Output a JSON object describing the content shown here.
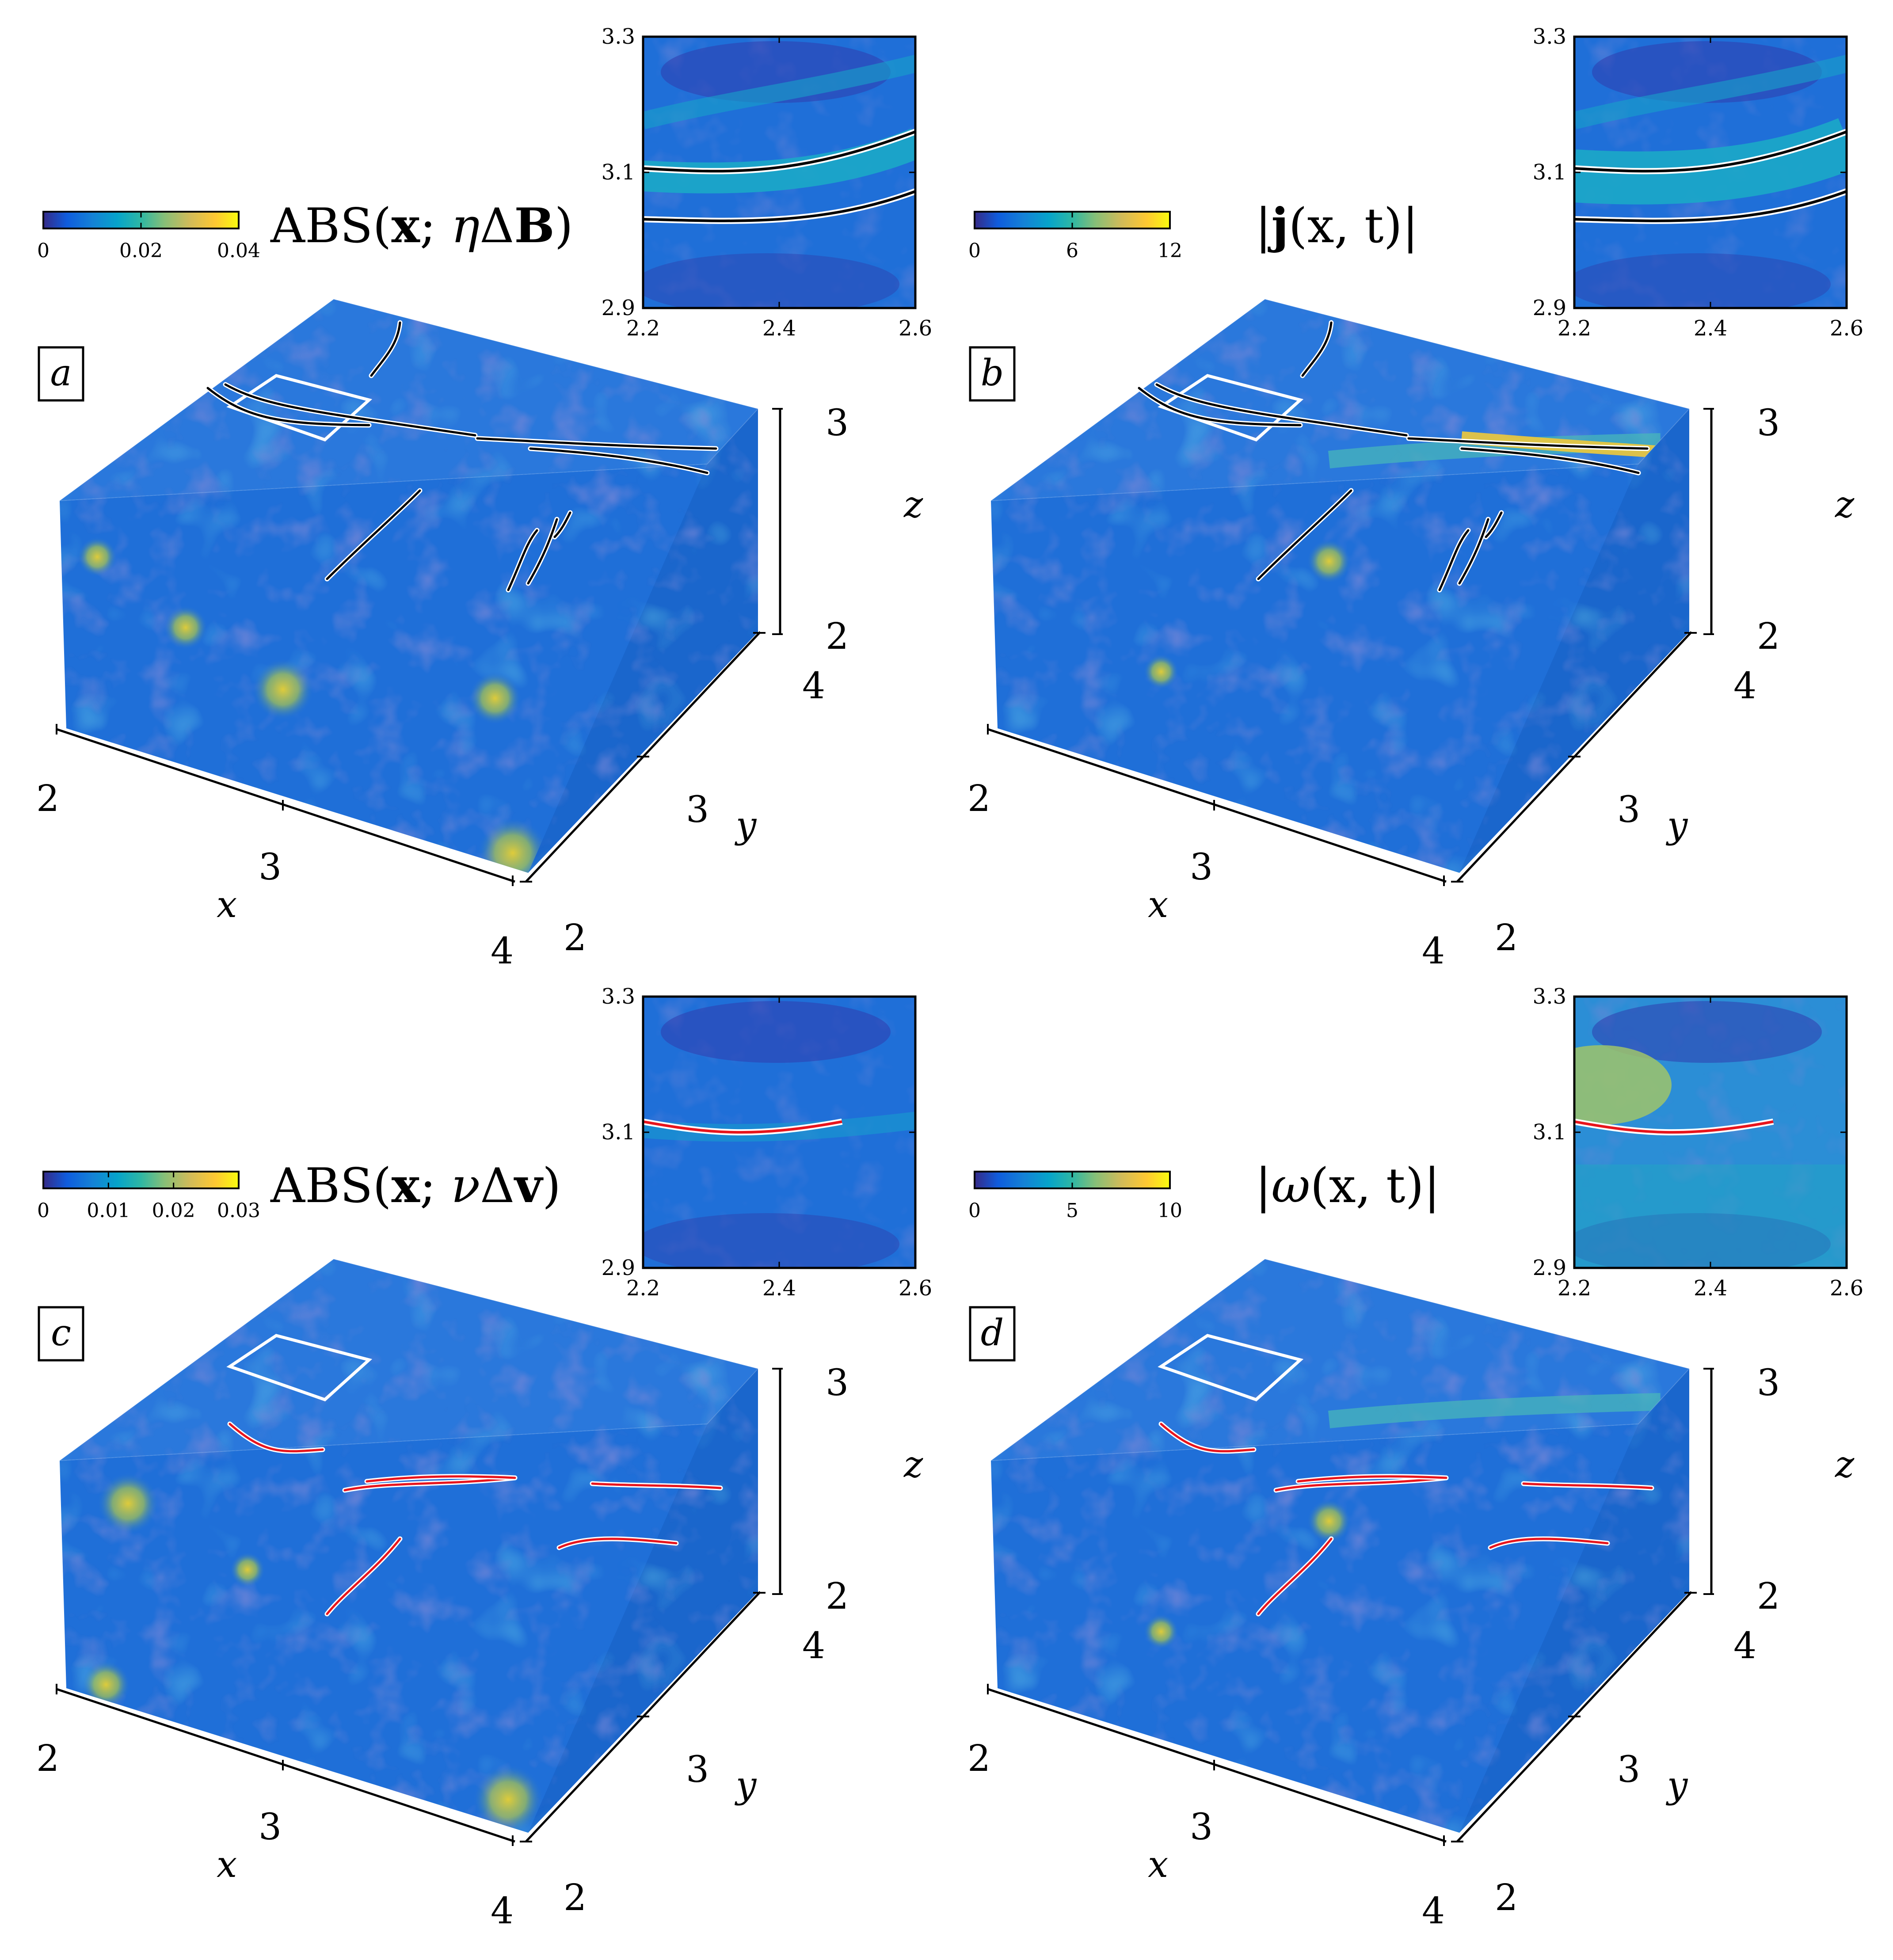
{
  "colormap": {
    "name": "parula",
    "stops": [
      "#352a87",
      "#0f5cdd",
      "#1481d6",
      "#06a4ca",
      "#2eb7a4",
      "#87bf77",
      "#d1bb59",
      "#fec832",
      "#f9fb0e"
    ]
  },
  "field_colors": {
    "base": "#1f6fd8",
    "dark": "#2f3dae",
    "mid": "#27a2d0",
    "high": "#7cc67a",
    "peak": "#f2d52a"
  },
  "line_colors": {
    "magnetic": "#000000",
    "vortex": "#e8141c",
    "outline": "#ffffff"
  },
  "panels": [
    {
      "id": "a",
      "label": "a",
      "title": {
        "prefix": "ABS(",
        "bold": "x",
        "sep": "; ",
        "greek": "η",
        "delta": "Δ",
        "vec": "B",
        "suffix": ")"
      },
      "colorbar": {
        "ticks": [
          "0",
          "0.02",
          "0.04"
        ],
        "range": [
          0,
          0.04
        ]
      },
      "field": "ABS(x; ηΔB)",
      "line_type": "magnetic",
      "axes": {
        "x_ticks": [
          "2",
          "3",
          "4"
        ],
        "y_ticks": [
          "2",
          "3",
          "4"
        ],
        "z_ticks": [
          "2",
          "3"
        ],
        "x_label": "x",
        "y_label": "y",
        "z_label": "z"
      },
      "inset": {
        "x_ticks": [
          "2.2",
          "2.4",
          "2.6"
        ],
        "y_ticks": [
          "2.9",
          "3.1",
          "3.3"
        ],
        "xlim": [
          2.2,
          2.6
        ],
        "ylim": [
          2.9,
          3.3
        ]
      }
    },
    {
      "id": "b",
      "label": "b",
      "title": {
        "prefix": "|",
        "bold": "j",
        "args": "(x, t)",
        "suffix": "|"
      },
      "colorbar": {
        "ticks": [
          "0",
          "6",
          "12"
        ],
        "range": [
          0,
          12
        ]
      },
      "field": "|j(x, t)|",
      "line_type": "magnetic",
      "axes": {
        "x_ticks": [
          "2",
          "3",
          "4"
        ],
        "y_ticks": [
          "2",
          "3",
          "4"
        ],
        "z_ticks": [
          "2",
          "3"
        ],
        "x_label": "x",
        "y_label": "y",
        "z_label": "z"
      },
      "inset": {
        "x_ticks": [
          "2.2",
          "2.4",
          "2.6"
        ],
        "y_ticks": [
          "2.9",
          "3.1",
          "3.3"
        ],
        "xlim": [
          2.2,
          2.6
        ],
        "ylim": [
          2.9,
          3.3
        ]
      }
    },
    {
      "id": "c",
      "label": "c",
      "title": {
        "prefix": "ABS(",
        "bold": "x",
        "sep": "; ",
        "greek": "ν",
        "delta": "Δ",
        "vec": "v",
        "suffix": ")"
      },
      "colorbar": {
        "ticks": [
          "0",
          "0.01",
          "0.02",
          "0.03"
        ],
        "range": [
          0,
          0.03
        ]
      },
      "field": "ABS(x; νΔv)",
      "line_type": "vortex",
      "axes": {
        "x_ticks": [
          "2",
          "3",
          "4"
        ],
        "y_ticks": [
          "2",
          "3",
          "4"
        ],
        "z_ticks": [
          "2",
          "3"
        ],
        "x_label": "x",
        "y_label": "y",
        "z_label": "z"
      },
      "inset": {
        "x_ticks": [
          "2.2",
          "2.4",
          "2.6"
        ],
        "y_ticks": [
          "2.9",
          "3.1",
          "3.3"
        ],
        "xlim": [
          2.2,
          2.6
        ],
        "ylim": [
          2.9,
          3.3
        ]
      }
    },
    {
      "id": "d",
      "label": "d",
      "title": {
        "prefix": "|",
        "greek": "ω",
        "args": "(x, t)",
        "suffix": "|"
      },
      "colorbar": {
        "ticks": [
          "0",
          "5",
          "10"
        ],
        "range": [
          0,
          10
        ]
      },
      "field": "|ω(x, t)|",
      "line_type": "vortex",
      "axes": {
        "x_ticks": [
          "2",
          "3",
          "4"
        ],
        "y_ticks": [
          "2",
          "3",
          "4"
        ],
        "z_ticks": [
          "2",
          "3"
        ],
        "x_label": "x",
        "y_label": "y",
        "z_label": "z"
      },
      "inset": {
        "x_ticks": [
          "2.2",
          "2.4",
          "2.6"
        ],
        "y_ticks": [
          "2.9",
          "3.1",
          "3.3"
        ],
        "xlim": [
          2.2,
          2.6
        ],
        "ylim": [
          2.9,
          3.3
        ]
      }
    }
  ]
}
